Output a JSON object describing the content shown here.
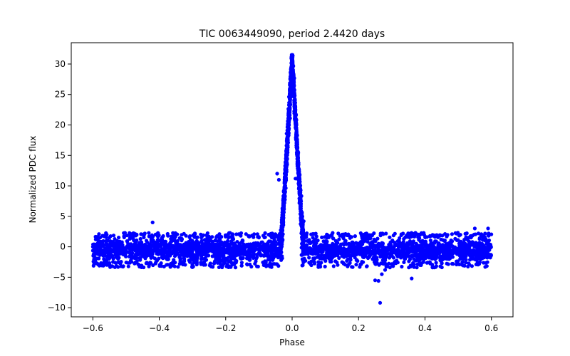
{
  "chart_data": {
    "type": "scatter",
    "title": "TIC 0063449090, period 2.4420 days",
    "xlabel": "Phase",
    "ylabel": "Normalized PDC flux",
    "xlim": [
      -0.665,
      0.665
    ],
    "ylim": [
      -11.5,
      33.5
    ],
    "xticks": [
      -0.6,
      -0.4,
      -0.2,
      0.0,
      0.2,
      0.4,
      0.6
    ],
    "xtick_labels": [
      "−0.6",
      "−0.4",
      "−0.2",
      "0.0",
      "0.2",
      "0.4",
      "0.6"
    ],
    "yticks": [
      -10,
      -5,
      0,
      5,
      10,
      15,
      20,
      25,
      30
    ],
    "ytick_labels": [
      "−10",
      "−5",
      "0",
      "5",
      "10",
      "15",
      "20",
      "25",
      "30"
    ],
    "marker_color": "#0000ff",
    "grid": false,
    "series": [
      {
        "name": "flux",
        "baseline": {
          "x_range": [
            -0.6,
            0.6
          ],
          "mean": -0.5,
          "spread": 1.7
        },
        "peak": {
          "center": 0.0,
          "amplitude": 31.5,
          "half_width": 0.035
        },
        "points": [
          {
            "x": -0.42,
            "y": 4.0
          },
          {
            "x": -0.015,
            "y": 13.5
          },
          {
            "x": -0.02,
            "y": 12.5
          },
          {
            "x": -0.045,
            "y": 12.0
          },
          {
            "x": -0.04,
            "y": 11.0
          },
          {
            "x": 0.01,
            "y": 11.2
          },
          {
            "x": 0.035,
            "y": 4.2
          },
          {
            "x": 0.25,
            "y": -5.5
          },
          {
            "x": 0.26,
            "y": -5.6
          },
          {
            "x": 0.27,
            "y": -4.5
          },
          {
            "x": 0.28,
            "y": -3.8
          },
          {
            "x": 0.265,
            "y": -9.2
          },
          {
            "x": 0.36,
            "y": -5.2
          },
          {
            "x": 0.385,
            "y": -3.0
          },
          {
            "x": 0.55,
            "y": 3.0
          },
          {
            "x": 0.59,
            "y": 3.0
          }
        ]
      }
    ]
  }
}
